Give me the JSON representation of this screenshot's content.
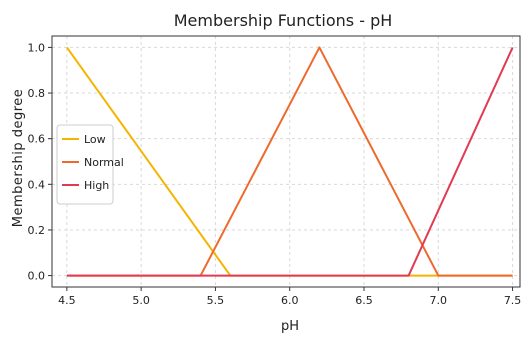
{
  "chart_data": {
    "type": "line",
    "title": "Membership Functions - pH",
    "xlabel": "pH",
    "ylabel": "Membership degree",
    "xlim": [
      4.4,
      7.55
    ],
    "ylim": [
      -0.05,
      1.05
    ],
    "xticks": [
      4.5,
      5.0,
      5.5,
      6.0,
      6.5,
      7.0,
      7.5
    ],
    "xtick_labels": [
      "4.5",
      "5.0",
      "5.5",
      "6.0",
      "6.5",
      "7.0",
      "7.5"
    ],
    "yticks": [
      0.0,
      0.2,
      0.4,
      0.6,
      0.8,
      1.0
    ],
    "ytick_labels": [
      "0.0",
      "0.2",
      "0.4",
      "0.6",
      "0.8",
      "1.0"
    ],
    "grid": true,
    "legend_position": "center-left",
    "series": [
      {
        "name": "Low",
        "color": "#f5b400",
        "x": [
          4.5,
          5.6,
          7.5
        ],
        "y": [
          1.0,
          0.0,
          0.0
        ]
      },
      {
        "name": "Normal",
        "color": "#ee6a2c",
        "x": [
          4.5,
          5.4,
          6.2,
          7.0,
          7.5
        ],
        "y": [
          0.0,
          0.0,
          1.0,
          0.0,
          0.0
        ]
      },
      {
        "name": "High",
        "color": "#e23a52",
        "x": [
          4.5,
          6.8,
          7.5
        ],
        "y": [
          0.0,
          0.0,
          1.0
        ]
      }
    ]
  }
}
